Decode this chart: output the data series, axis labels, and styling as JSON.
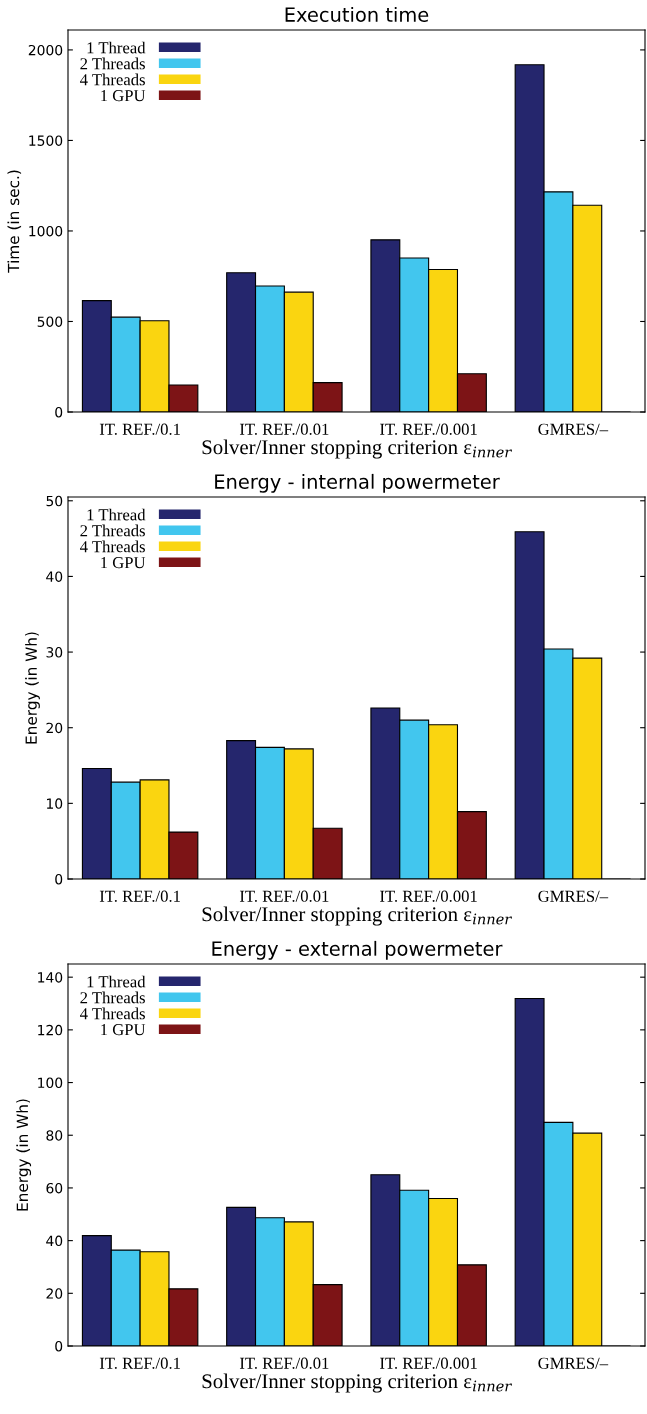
{
  "chart_data": [
    {
      "type": "bar",
      "title": "Execution time",
      "xlabel": "Solver/Inner stopping criterion ε$_{inner}$",
      "ylabel": "Time (in sec.)",
      "categories": [
        "IT. REF./0.1",
        "IT. REF./0.01",
        "IT. REF./0.001",
        "GMRES/–"
      ],
      "ylim": [
        0,
        2110
      ],
      "yticks": [
        0,
        500,
        1000,
        1500,
        2000
      ],
      "grid": false,
      "legend": "top left",
      "series": [
        {
          "name": "1 Thread",
          "color": "#25266d",
          "values": [
            615,
            769,
            951,
            1918
          ]
        },
        {
          "name": "2 Threads",
          "color": "#42c6ee",
          "values": [
            524,
            696,
            851,
            1216
          ]
        },
        {
          "name": "4 Threads",
          "color": "#fad510",
          "values": [
            504,
            662,
            787,
            1142
          ]
        },
        {
          "name": "1 GPU",
          "color": "#7d1416",
          "values": [
            149,
            162,
            211,
            0
          ]
        }
      ]
    },
    {
      "type": "bar",
      "title": "Energy - internal powermeter",
      "xlabel": "Solver/Inner stopping criterion ε$_{inner}$",
      "ylabel": "Energy (in Wh)",
      "categories": [
        "IT. REF./0.1",
        "IT. REF./0.01",
        "IT. REF./0.001",
        "GMRES/–"
      ],
      "ylim": [
        0,
        50.5
      ],
      "yticks": [
        0,
        10,
        20,
        30,
        40,
        50
      ],
      "grid": false,
      "legend": "top left",
      "series": [
        {
          "name": "1 Thread",
          "color": "#25266d",
          "values": [
            14.6,
            18.3,
            22.6,
            45.9
          ]
        },
        {
          "name": "2 Threads",
          "color": "#42c6ee",
          "values": [
            12.8,
            17.4,
            21.0,
            30.4
          ]
        },
        {
          "name": "4 Threads",
          "color": "#fad510",
          "values": [
            13.1,
            17.2,
            20.4,
            29.2
          ]
        },
        {
          "name": "1 GPU",
          "color": "#7d1416",
          "values": [
            6.2,
            6.7,
            8.9,
            0
          ]
        }
      ]
    },
    {
      "type": "bar",
      "title": "Energy - external powermeter",
      "xlabel": "Solver/Inner stopping criterion ε$_{inner}$",
      "ylabel": "Energy (in Wh)",
      "categories": [
        "IT. REF./0.1",
        "IT. REF./0.01",
        "IT. REF./0.001",
        "GMRES/–"
      ],
      "ylim": [
        0,
        145
      ],
      "yticks": [
        0,
        20,
        40,
        60,
        80,
        100,
        120,
        140
      ],
      "grid": false,
      "legend": "top left",
      "series": [
        {
          "name": "1 Thread",
          "color": "#25266d",
          "values": [
            41.9,
            52.6,
            65.0,
            131.9
          ]
        },
        {
          "name": "2 Threads",
          "color": "#42c6ee",
          "values": [
            36.4,
            48.7,
            59.1,
            84.9
          ]
        },
        {
          "name": "4 Threads",
          "color": "#fad510",
          "values": [
            35.8,
            47.1,
            56.0,
            80.8
          ]
        },
        {
          "name": "1 GPU",
          "color": "#7d1416",
          "values": [
            21.7,
            23.3,
            30.8,
            0
          ]
        }
      ]
    }
  ]
}
